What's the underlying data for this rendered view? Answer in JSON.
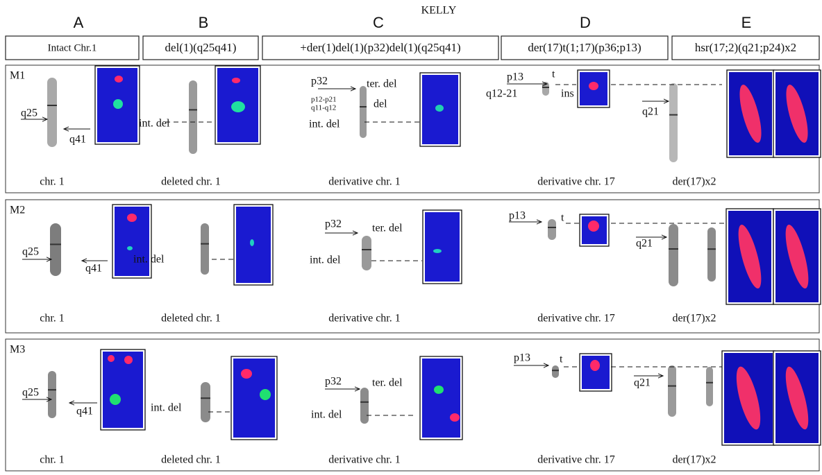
{
  "title": "KELLY",
  "columns": [
    {
      "letter": "A",
      "header": "Intact Chr.1"
    },
    {
      "letter": "B",
      "header": "del(1)(q25q41)"
    },
    {
      "letter": "C",
      "header": "+der(1)del(1)(p32)del(1)(q25q41)"
    },
    {
      "letter": "D",
      "header": "der(17)t(1;17)(p36;p13)"
    },
    {
      "letter": "E",
      "header": "hsr(17;2)(q21;p24)x2"
    }
  ],
  "rows": [
    {
      "label": "M1",
      "annotations": [
        "q25",
        "q41",
        "int. del",
        "p32",
        "ter. del",
        "p12-p21",
        "q11-q12",
        "del",
        "int. del",
        "p13",
        "q12-21",
        "t",
        "ins",
        "q21"
      ],
      "captions": [
        "chr. 1",
        "deleted chr. 1",
        "derivative chr. 1",
        "derivative chr. 17",
        "der(17)x2"
      ]
    },
    {
      "label": "M2",
      "annotations": [
        "q25",
        "q41",
        "int. del",
        "p32",
        "ter. del",
        "int. del",
        "p13",
        "t",
        "q21"
      ],
      "captions": [
        "chr. 1",
        "deleted chr. 1",
        "derivative chr. 1",
        "derivative chr. 17",
        "der(17)x2"
      ]
    },
    {
      "label": "M3",
      "annotations": [
        "q25",
        "q41",
        "int. del",
        "p32",
        "ter. del",
        "int. del",
        "p13",
        "t",
        "q21"
      ],
      "captions": [
        "chr. 1",
        "deleted chr. 1",
        "derivative chr. 1",
        "derivative chr. 17",
        "der(17)x2"
      ]
    }
  ]
}
